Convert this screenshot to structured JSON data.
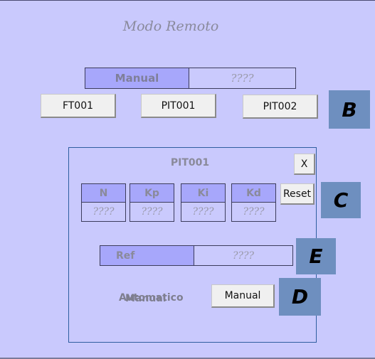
{
  "title": "Modo Remoto",
  "mode": {
    "label": "Manual",
    "value": "????"
  },
  "buttons": {
    "ft001": "FT001",
    "pit001": "PIT001",
    "pit002": "PIT002"
  },
  "tags": {
    "b": "B",
    "c": "C",
    "d": "D",
    "e": "E"
  },
  "panel": {
    "title": "PIT001",
    "close_label": "X",
    "reset_label": "Reset",
    "params": [
      {
        "label": "N",
        "value": "????"
      },
      {
        "label": "Kp",
        "value": "????"
      },
      {
        "label": "Ki",
        "value": "????"
      },
      {
        "label": "Kd",
        "value": "????"
      }
    ],
    "ref": {
      "label": "Ref",
      "value": "????"
    },
    "overlap_text_a": "Automatico",
    "overlap_text_b": "Manual",
    "manual_button_label": "Manual"
  }
}
